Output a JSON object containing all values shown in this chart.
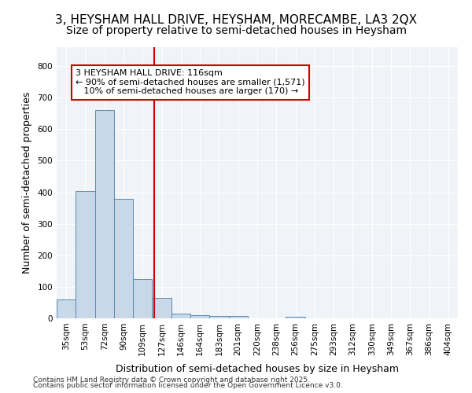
{
  "title1": "3, HEYSHAM HALL DRIVE, HEYSHAM, MORECAMBE, LA3 2QX",
  "title2": "Size of property relative to semi-detached houses in Heysham",
  "xlabel": "Distribution of semi-detached houses by size in Heysham",
  "ylabel": "Number of semi-detached properties",
  "bin_labels": [
    "35sqm",
    "53sqm",
    "72sqm",
    "90sqm",
    "109sqm",
    "127sqm",
    "146sqm",
    "164sqm",
    "183sqm",
    "201sqm",
    "220sqm",
    "238sqm",
    "256sqm",
    "275sqm",
    "293sqm",
    "312sqm",
    "330sqm",
    "349sqm",
    "367sqm",
    "386sqm",
    "404sqm"
  ],
  "bar_values": [
    60,
    405,
    660,
    380,
    125,
    65,
    15,
    10,
    8,
    7,
    0,
    0,
    5,
    0,
    0,
    0,
    0,
    0,
    0,
    0,
    0
  ],
  "bar_color": "#c8d8e8",
  "bar_edge_color": "#5a8ab0",
  "red_line_x": 4.6,
  "annotation_text": "3 HEYSHAM HALL DRIVE: 116sqm\n← 90% of semi-detached houses are smaller (1,571)\n   10% of semi-detached houses are larger (170) →",
  "annotation_box_color": "#ffffff",
  "annotation_box_edge": "#cc0000",
  "vline_color": "#cc0000",
  "ylim": [
    0,
    860
  ],
  "yticks": [
    0,
    100,
    200,
    300,
    400,
    500,
    600,
    700,
    800
  ],
  "background_color": "#f0f4f8",
  "footer1": "Contains HM Land Registry data © Crown copyright and database right 2025.",
  "footer2": "Contains public sector information licensed under the Open Government Licence v3.0.",
  "title1_fontsize": 11,
  "title2_fontsize": 10,
  "annotation_fontsize": 8,
  "tick_fontsize": 7.5,
  "ylabel_fontsize": 9,
  "xlabel_fontsize": 9
}
